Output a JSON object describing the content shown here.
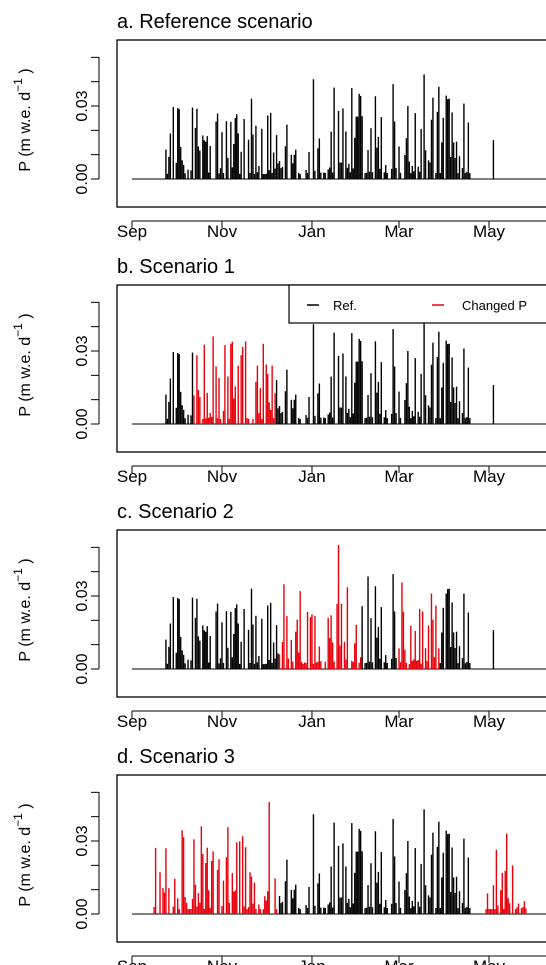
{
  "figure": {
    "legend": {
      "ref_label": "Ref.",
      "changed_label": "Changed P",
      "ref_color": "#000000",
      "changed_color": "#e8000b"
    },
    "ylabel_main": "P (m w.e. d",
    "ylabel_sup": "−1",
    "ylabel_close": ")"
  },
  "chart_data": [
    {
      "type": "bar",
      "title": "a. Reference scenario",
      "xlabel": "",
      "ylabel": "P (m w.e. d−1 )",
      "x_ticks": [
        "Sep",
        "Nov",
        "Jan",
        "Mar",
        "May"
      ],
      "x_tick_days": [
        0,
        61,
        122,
        181,
        242
      ],
      "y_ticks": [
        "0.00",
        "0.03"
      ],
      "y_tick_values": [
        0.0,
        0.03
      ],
      "ylim": [
        0,
        0.055
      ],
      "xlim": [
        0,
        253
      ],
      "series_note": "daily values, all reference (black)",
      "changed_range_days": [],
      "legend": false,
      "grid": false
    },
    {
      "type": "bar",
      "title": "b. Scenario 1",
      "xlabel": "",
      "ylabel": "P (m w.e. d−1 )",
      "x_ticks": [
        "Sep",
        "Nov",
        "Jan",
        "Mar",
        "May"
      ],
      "x_tick_days": [
        0,
        61,
        122,
        181,
        242
      ],
      "y_ticks": [
        "0.00",
        "0.03"
      ],
      "y_tick_values": [
        0.0,
        0.03
      ],
      "ylim": [
        0,
        0.055
      ],
      "xlim": [
        0,
        253
      ],
      "changed_range_days": [
        [
          27,
          82
        ]
      ],
      "legend": true,
      "legend_position": "top-right",
      "grid": false
    },
    {
      "type": "bar",
      "title": "c. Scenario 2",
      "xlabel": "",
      "ylabel": "P (m w.e. d−1 )",
      "x_ticks": [
        "Sep",
        "Nov",
        "Jan",
        "Mar",
        "May"
      ],
      "x_tick_days": [
        0,
        61,
        122,
        181,
        242
      ],
      "y_ticks": [
        "0.00",
        "0.03"
      ],
      "y_tick_values": [
        0.0,
        0.03
      ],
      "ylim": [
        0,
        0.055
      ],
      "xlim": [
        0,
        253
      ],
      "changed_range_days": [
        [
          85,
          140
        ],
        [
          165,
          193
        ]
      ],
      "legend": false,
      "grid": false
    },
    {
      "type": "bar",
      "title": "d. Scenario 3",
      "xlabel": "",
      "ylabel": "P (m w.e. d−1 )",
      "x_ticks": [
        "Sep",
        "Nov",
        "Jan",
        "Mar",
        "May"
      ],
      "x_tick_days": [
        0,
        61,
        122,
        181,
        242
      ],
      "y_ticks": [
        "0.00",
        "0.03"
      ],
      "y_tick_values": [
        0.0,
        0.03
      ],
      "ylim": [
        0,
        0.055
      ],
      "xlim": [
        0,
        253
      ],
      "changed_range_days": [
        [
          0,
          84
        ],
        [
          225,
          253
        ]
      ],
      "legend": false,
      "grid": false
    }
  ]
}
